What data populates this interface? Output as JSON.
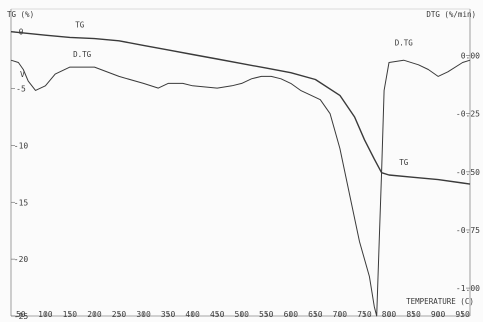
{
  "chart_data": {
    "type": "line",
    "left_axis_title": "TG (%)",
    "right_axis_title": "DTG (%/min)",
    "xlabel": "TEMPERATURE (C)",
    "x_ticks": [
      "50",
      "100",
      "150",
      "200",
      "250",
      "300",
      "350",
      "400",
      "450",
      "500",
      "550",
      "600",
      "650",
      "700",
      "750",
      "800",
      "850",
      "900",
      "950"
    ],
    "left_ticks": [
      "0",
      "-5",
      "-10",
      "-15",
      "-20",
      "-25"
    ],
    "right_ticks": [
      "0.00",
      "-0.25",
      "-0.50",
      "-0.75",
      "-1.00"
    ],
    "xlim": [
      30,
      965
    ],
    "tg_ylim": [
      -25,
      2
    ],
    "dtg_ylim": [
      -1.12,
      0.2
    ],
    "grid": false,
    "series": [
      {
        "name": "TG",
        "axis": "left",
        "points": [
          [
            30,
            0
          ],
          [
            100,
            -0.3
          ],
          [
            150,
            -0.5
          ],
          [
            200,
            -0.6
          ],
          [
            250,
            -0.8
          ],
          [
            300,
            -1.2
          ],
          [
            350,
            -1.6
          ],
          [
            400,
            -2.0
          ],
          [
            450,
            -2.4
          ],
          [
            500,
            -2.8
          ],
          [
            550,
            -3.2
          ],
          [
            600,
            -3.6
          ],
          [
            650,
            -4.2
          ],
          [
            700,
            -5.6
          ],
          [
            730,
            -7.5
          ],
          [
            750,
            -9.5
          ],
          [
            770,
            -11.2
          ],
          [
            785,
            -12.4
          ],
          [
            800,
            -12.6
          ],
          [
            850,
            -12.8
          ],
          [
            900,
            -13.0
          ],
          [
            950,
            -13.3
          ],
          [
            965,
            -13.4
          ]
        ]
      },
      {
        "name": "D.TG",
        "axis": "right",
        "points": [
          [
            30,
            -0.02
          ],
          [
            45,
            -0.03
          ],
          [
            55,
            -0.06
          ],
          [
            65,
            -0.11
          ],
          [
            80,
            -0.15
          ],
          [
            100,
            -0.13
          ],
          [
            120,
            -0.08
          ],
          [
            150,
            -0.05
          ],
          [
            200,
            -0.05
          ],
          [
            250,
            -0.09
          ],
          [
            300,
            -0.12
          ],
          [
            330,
            -0.14
          ],
          [
            350,
            -0.12
          ],
          [
            380,
            -0.12
          ],
          [
            400,
            -0.13
          ],
          [
            450,
            -0.14
          ],
          [
            480,
            -0.13
          ],
          [
            500,
            -0.12
          ],
          [
            520,
            -0.1
          ],
          [
            540,
            -0.09
          ],
          [
            560,
            -0.09
          ],
          [
            580,
            -0.1
          ],
          [
            600,
            -0.12
          ],
          [
            620,
            -0.15
          ],
          [
            640,
            -0.17
          ],
          [
            660,
            -0.19
          ],
          [
            680,
            -0.25
          ],
          [
            700,
            -0.4
          ],
          [
            720,
            -0.6
          ],
          [
            740,
            -0.8
          ],
          [
            760,
            -0.95
          ],
          [
            770,
            -1.08
          ],
          [
            775,
            -1.12
          ],
          [
            780,
            -0.8
          ],
          [
            785,
            -0.5
          ],
          [
            790,
            -0.15
          ],
          [
            800,
            -0.03
          ],
          [
            830,
            -0.02
          ],
          [
            860,
            -0.04
          ],
          [
            880,
            -0.06
          ],
          [
            900,
            -0.09
          ],
          [
            920,
            -0.07
          ],
          [
            950,
            -0.03
          ],
          [
            965,
            -0.02
          ]
        ]
      }
    ],
    "annotations": [
      {
        "text": "TG",
        "x": 170,
        "y": 0.1,
        "axis": "left"
      },
      {
        "text": "D.TG",
        "x": 175,
        "y": -0.02,
        "axis": "right"
      },
      {
        "text": "D.TG",
        "x": 830,
        "y": 0.03,
        "axis": "right"
      },
      {
        "text": "TG",
        "x": 830,
        "y": -12.0,
        "axis": "left"
      }
    ],
    "extra_text": [
      "V"
    ]
  }
}
